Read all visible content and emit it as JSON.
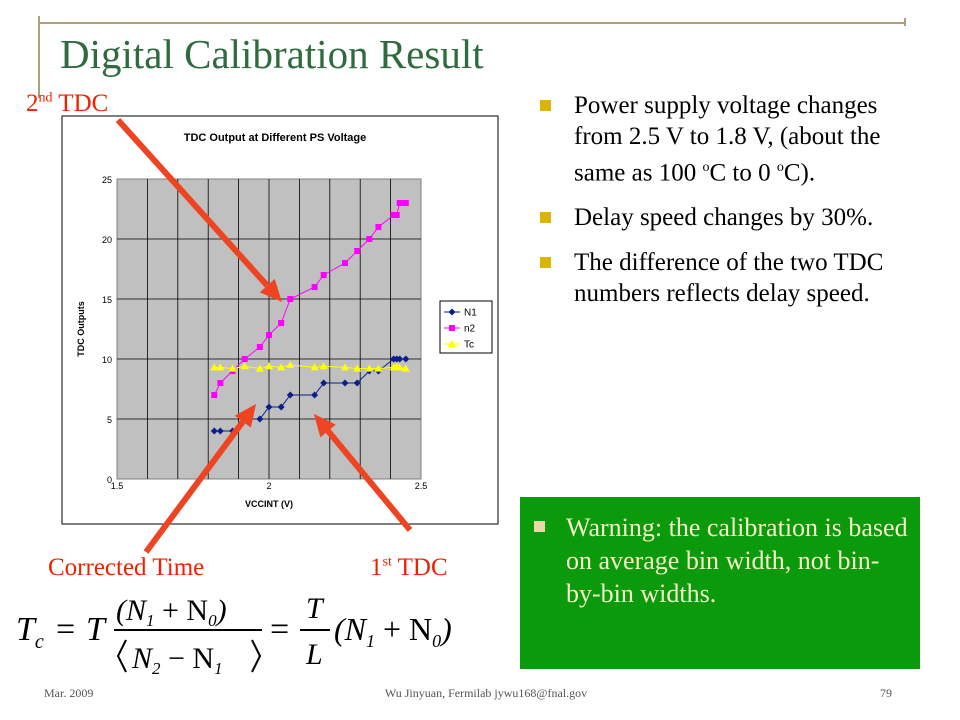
{
  "slide": {
    "title": "Digital Calibration Result",
    "bullets": [
      {
        "pre": "Power supply voltage changes from 2.5 V to 1.8 V, (about the same as 100 ",
        "sup1": "o",
        "mid": "C to 0 ",
        "sup2": "o",
        "post": "C)."
      },
      {
        "text": "Delay speed changes by 30%."
      },
      {
        "text": "The difference of the two TDC numbers reflects delay speed."
      }
    ],
    "warning": "Warning: the calibration is based on average bin width, not bin-by-bin widths.",
    "colors": {
      "title": "#2e6b3e",
      "accent": "#ee2200",
      "warning_bg": "#0b9a0b",
      "bullet": "#d9b400"
    }
  },
  "annotations": {
    "second_tdc": {
      "num": "2",
      "sup": "nd",
      "text": " TDC"
    },
    "first_tdc": {
      "num": "1",
      "sup": "st",
      "text": " TDC"
    },
    "corrected_time": "Corrected Time"
  },
  "formula": {
    "lhs_T": "T",
    "lhs_sub": "c",
    "eq": "=",
    "T": "T",
    "num_open": "(N",
    "num_sub1": "1",
    "plus": " + N",
    "num_sub0": "0",
    "num_close": ")",
    "den_open": "N",
    "den_sub2": "2",
    "minus": " − N",
    "den_sub1": "1",
    "eq2": "=",
    "frac_T": "T",
    "frac_L": "L",
    "rhs": "(N",
    "rhs_sub1": "1",
    "rhs_plus": " + N",
    "rhs_sub0": "0",
    "rhs_close": ")"
  },
  "footer": {
    "date": "Mar. 2009",
    "author": "Wu Jinyuan, Fermilab jywu168@fnal.gov",
    "page": "79"
  },
  "chart_data": {
    "type": "line",
    "title": "TDC Output at Different PS Voltage",
    "xlabel": "VCCINT (V)",
    "ylabel": "TDC Outputs",
    "xlim": [
      1.5,
      2.5
    ],
    "ylim": [
      0,
      25
    ],
    "xticks": [
      "1.5",
      "2",
      "2.5"
    ],
    "yticks": [
      "0",
      "5",
      "10",
      "15",
      "20",
      "25"
    ],
    "grid": true,
    "legend": "right",
    "series": [
      {
        "name": "N1",
        "color": "#0a1e8c",
        "marker": "diamond",
        "x": [
          1.82,
          1.84,
          1.88,
          1.92,
          1.97,
          2.0,
          2.04,
          2.07,
          2.15,
          2.18,
          2.25,
          2.29,
          2.33,
          2.36,
          2.41,
          2.42,
          2.43,
          2.45
        ],
        "y": [
          4,
          4,
          4,
          5,
          5,
          6,
          6,
          7,
          7,
          8,
          8,
          8,
          9,
          9,
          10,
          10,
          10,
          10
        ]
      },
      {
        "name": "n2",
        "color": "#ff00ff",
        "marker": "square",
        "x": [
          1.82,
          1.84,
          1.88,
          1.92,
          1.97,
          2.0,
          2.04,
          2.07,
          2.15,
          2.18,
          2.25,
          2.29,
          2.33,
          2.36,
          2.41,
          2.42,
          2.43,
          2.45
        ],
        "y": [
          7,
          8,
          9,
          10,
          11,
          12,
          13,
          15,
          16,
          17,
          18,
          19,
          20,
          21,
          22,
          22,
          23,
          23
        ]
      },
      {
        "name": "Tc",
        "color": "#ffff00",
        "marker": "triangle",
        "x": [
          1.82,
          1.84,
          1.88,
          1.92,
          1.97,
          2.0,
          2.04,
          2.07,
          2.15,
          2.18,
          2.25,
          2.29,
          2.33,
          2.36,
          2.41,
          2.42,
          2.43,
          2.45
        ],
        "y": [
          9.3,
          9.3,
          9.2,
          9.4,
          9.2,
          9.4,
          9.3,
          9.5,
          9.3,
          9.4,
          9.3,
          9.2,
          9.2,
          9.2,
          9.3,
          9.4,
          9.3,
          9.2
        ]
      }
    ]
  }
}
